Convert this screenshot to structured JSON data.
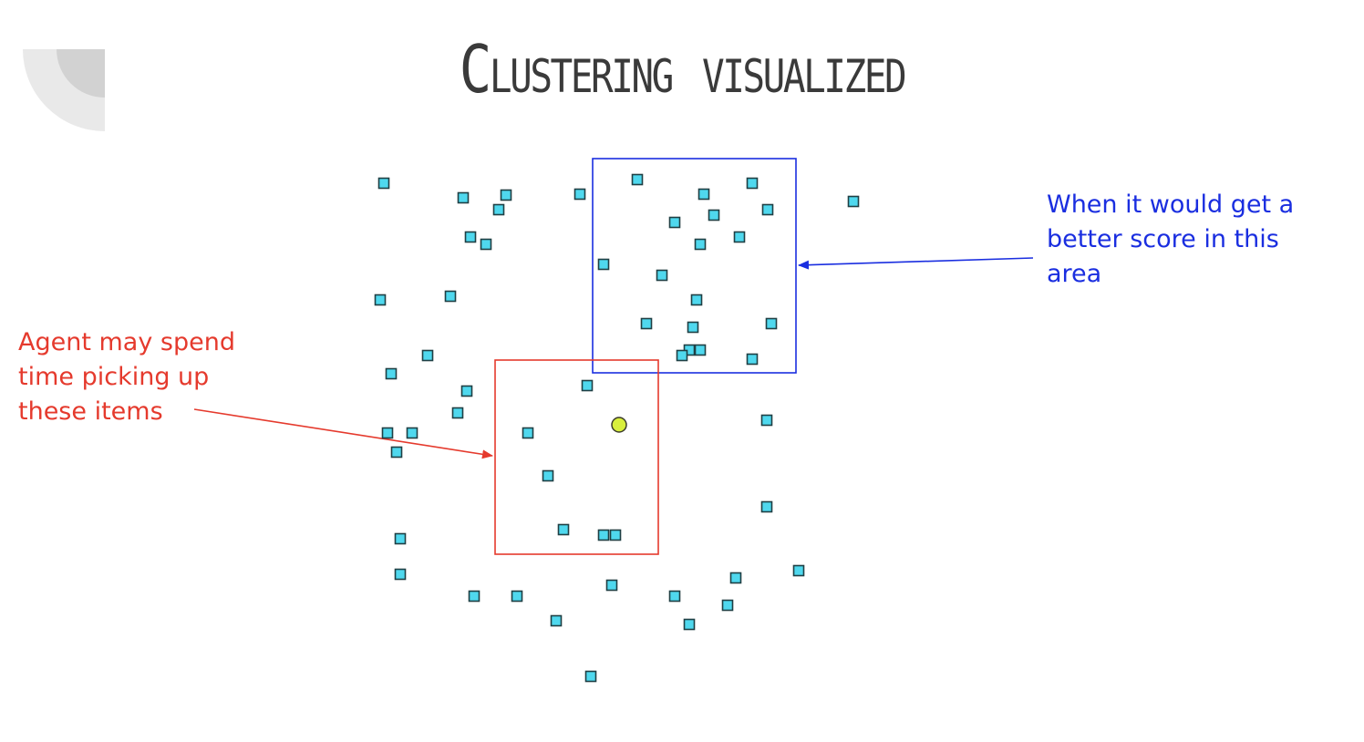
{
  "slide": {
    "title": "Clustering visualized"
  },
  "annotations": {
    "red_note": "Agent may spend time picking up these items",
    "blue_note": "When it would get a better score in this area"
  },
  "colors": {
    "item_fill": "#4fd8ee",
    "item_stroke": "#1f3f44",
    "agent_fill": "#d8ef3c",
    "red": "#e53a2d",
    "blue": "#1a2ee0",
    "title": "#3a3a3a"
  },
  "icons": {
    "item": "square",
    "agent": "circle"
  }
}
